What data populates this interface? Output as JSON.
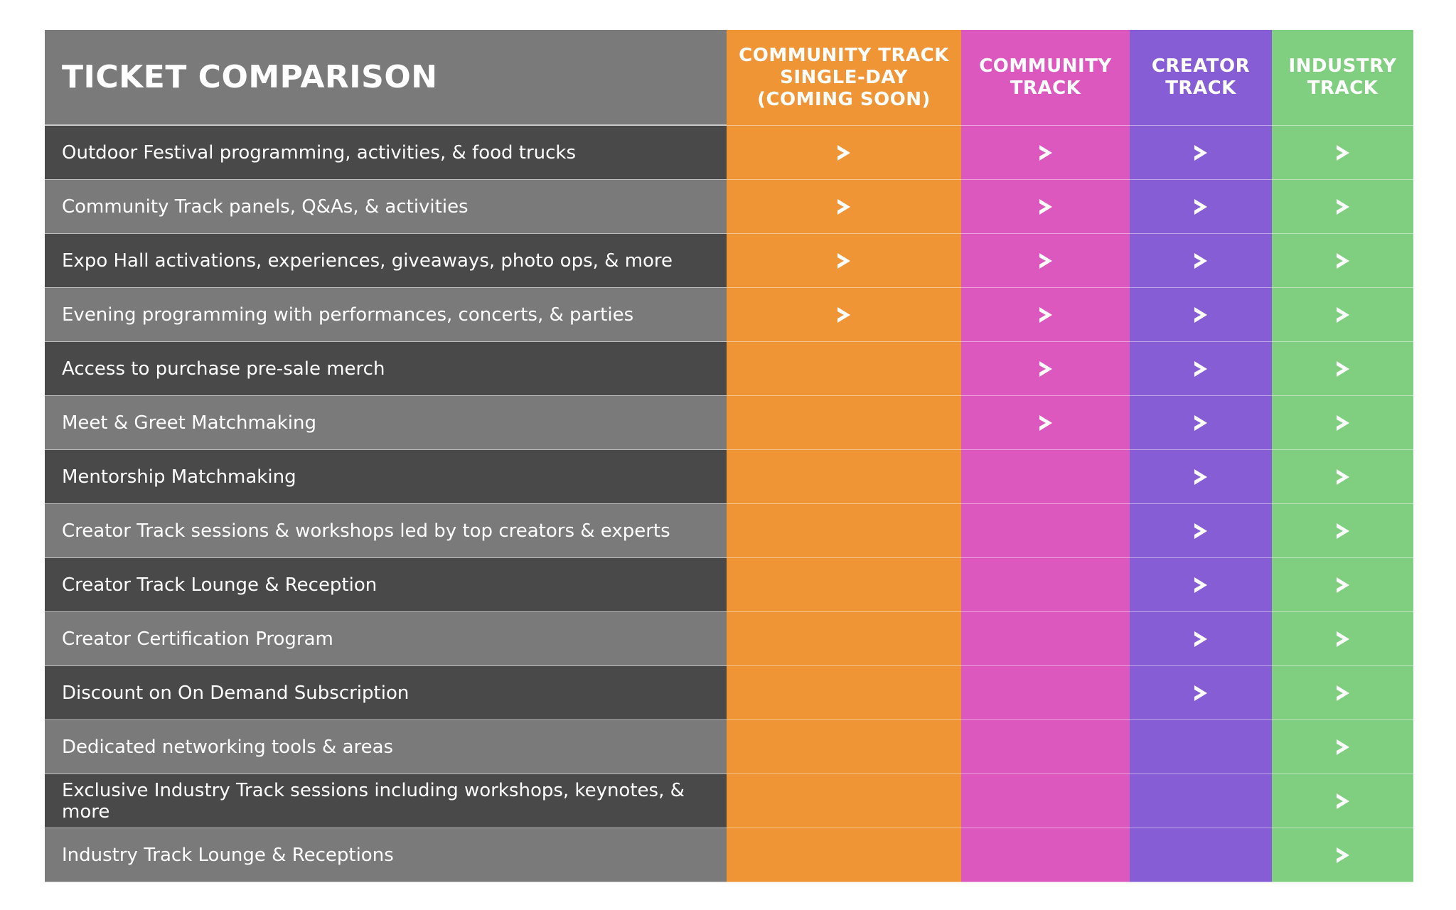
{
  "title": "TICKET COMPARISON",
  "columns": [
    {
      "label": "COMMUNITY TRACK SINGLE-DAY (COMING SOON)",
      "color": "#f09536"
    },
    {
      "label": "COMMUNITY TRACK",
      "color": "#dc58be"
    },
    {
      "label": "CREATOR TRACK",
      "color": "#865dd5"
    },
    {
      "label": "INDUSTRY TRACK",
      "color": "#80cf80"
    }
  ],
  "check_icon": "chevron-right-icon",
  "rows": [
    {
      "label": "Outdoor Festival programming, activities, & food trucks",
      "included": [
        true,
        true,
        true,
        true
      ]
    },
    {
      "label": "Community Track panels, Q&As, & activities",
      "included": [
        true,
        true,
        true,
        true
      ]
    },
    {
      "label": "Expo Hall activations, experiences, giveaways, photo ops, & more",
      "included": [
        true,
        true,
        true,
        true
      ]
    },
    {
      "label": "Evening programming with performances, concerts, & parties",
      "included": [
        true,
        true,
        true,
        true
      ]
    },
    {
      "label": "Access to purchase pre-sale merch",
      "included": [
        false,
        true,
        true,
        true
      ]
    },
    {
      "label": "Meet & Greet Matchmaking",
      "included": [
        false,
        true,
        true,
        true
      ]
    },
    {
      "label": "Mentorship Matchmaking",
      "included": [
        false,
        false,
        true,
        true
      ]
    },
    {
      "label": "Creator Track sessions & workshops led by top creators & experts",
      "included": [
        false,
        false,
        true,
        true
      ]
    },
    {
      "label": "Creator Track Lounge & Reception",
      "included": [
        false,
        false,
        true,
        true
      ]
    },
    {
      "label": "Creator Certification Program",
      "included": [
        false,
        false,
        true,
        true
      ]
    },
    {
      "label": "Discount on On Demand Subscription",
      "included": [
        false,
        false,
        true,
        true
      ]
    },
    {
      "label": "Dedicated networking tools & areas",
      "included": [
        false,
        false,
        false,
        true
      ]
    },
    {
      "label": "Exclusive Industry Track sessions including workshops, keynotes, & more",
      "included": [
        false,
        false,
        false,
        true
      ]
    },
    {
      "label": "Industry Track Lounge & Receptions",
      "included": [
        false,
        false,
        false,
        true
      ]
    }
  ]
}
